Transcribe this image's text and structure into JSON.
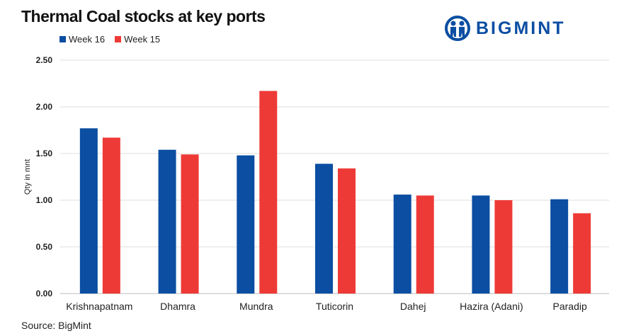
{
  "chart_data": {
    "type": "bar",
    "title": "Thermal Coal stocks at key ports",
    "xlabel": "",
    "ylabel": "Qty in mnt",
    "ylim": [
      0,
      2.5
    ],
    "yticks": [
      "0.00",
      "0.50",
      "1.00",
      "1.50",
      "2.00",
      "2.50"
    ],
    "grid": true,
    "legend_position": "top-left",
    "categories": [
      "Krishnapatnam",
      "Dhamra",
      "Mundra",
      "Tuticorin",
      "Dahej",
      "Hazira (Adani)",
      "Paradip"
    ],
    "series": [
      {
        "name": "Week 16",
        "color": "#0b4ea2",
        "values": [
          1.77,
          1.54,
          1.48,
          1.39,
          1.06,
          1.05,
          1.01
        ]
      },
      {
        "name": "Week 15",
        "color": "#ee3a36",
        "values": [
          1.67,
          1.49,
          2.17,
          1.34,
          1.05,
          1.0,
          0.86
        ]
      }
    ]
  },
  "logo": {
    "text": "BIGMINT"
  },
  "source": "Source: BigMint"
}
